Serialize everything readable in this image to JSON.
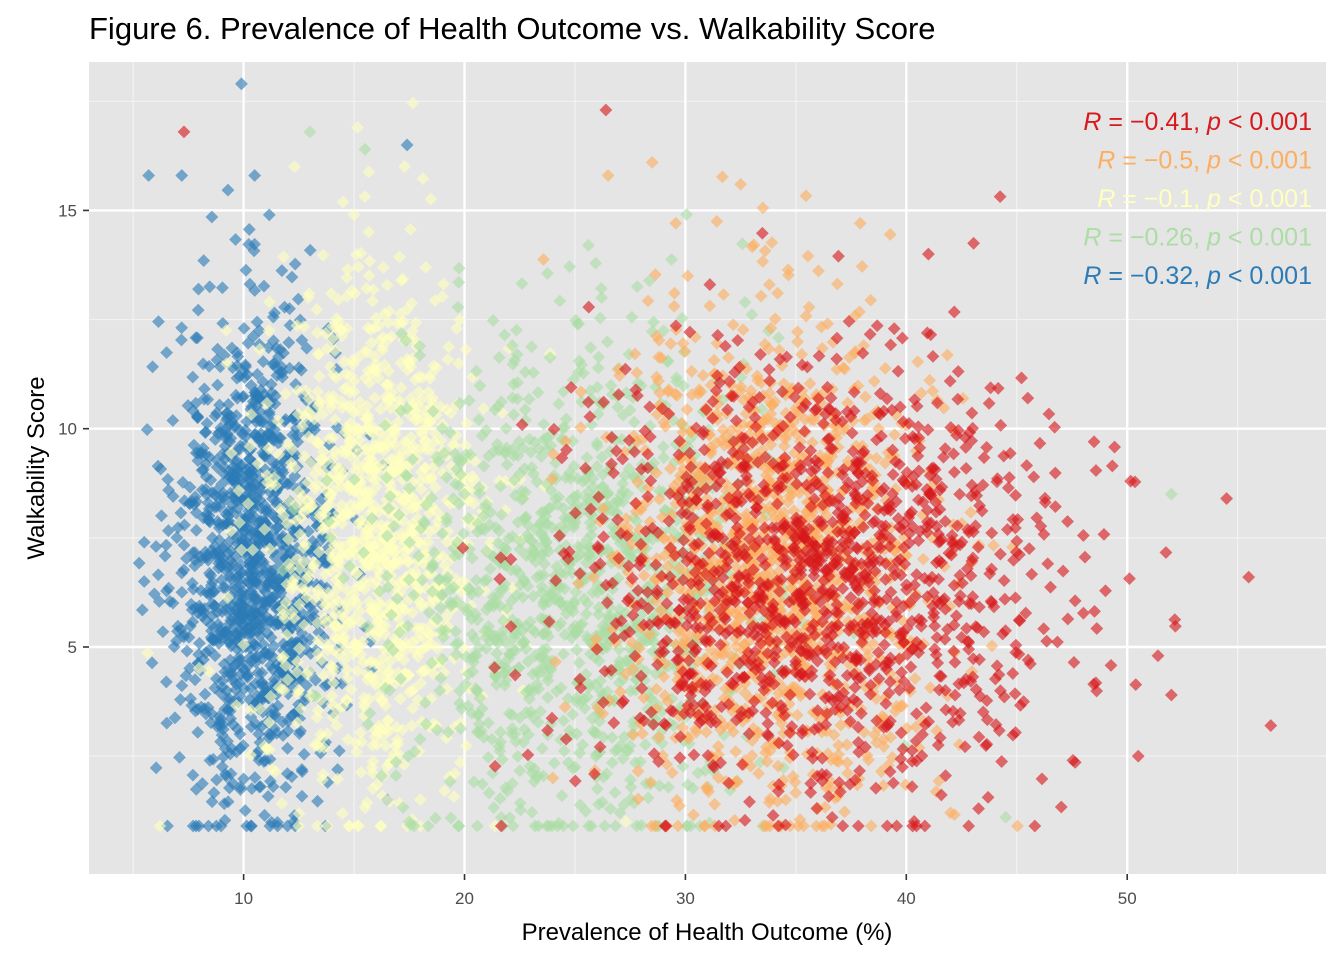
{
  "chart_data": {
    "type": "scatter",
    "title": "Figure 6. Prevalence of Health Outcome vs. Walkability Score",
    "xlabel": "Prevalence of Health Outcome (%)",
    "ylabel": "Walkability Score",
    "xlim": [
      3,
      59
    ],
    "ylim": [
      -0.2,
      18.4
    ],
    "x_ticks": [
      10,
      20,
      30,
      40,
      50
    ],
    "y_ticks": [
      5,
      10,
      15
    ],
    "grid": true,
    "marker": "diamond",
    "series": [
      {
        "color": "#d7191c",
        "annotation": {
          "r": "−0.41",
          "p": "0.001"
        },
        "cluster": {
          "x_mean": 36,
          "x_sd": 5.5,
          "y_mean": 6.5,
          "y_sd": 2.5,
          "n": 1300
        },
        "values": [
          [
            7.3,
            16.8
          ],
          [
            26.4,
            17.3
          ],
          [
            56.5,
            3.2
          ],
          [
            52.0,
            3.9
          ],
          [
            50.5,
            2.5
          ],
          [
            54.5,
            8.4
          ],
          [
            55.5,
            6.6
          ],
          [
            48.5,
            9.7
          ],
          [
            45.5,
            10.7
          ],
          [
            41.0,
            14.0
          ]
        ]
      },
      {
        "color": "#fdae61",
        "annotation": {
          "r": "−0.5",
          "p": "0.001"
        },
        "cluster": {
          "x_mean": 34,
          "x_sd": 3.5,
          "y_mean": 7.0,
          "y_sd": 2.8,
          "n": 1300
        },
        "values": [
          [
            28.5,
            16.1
          ],
          [
            32.5,
            15.6
          ],
          [
            24.0,
            2.0
          ],
          [
            26.5,
            15.8
          ],
          [
            42.0,
            1.2
          ]
        ]
      },
      {
        "color": "#ffffbf",
        "annotation": {
          "r": "−0.1",
          "p": "0.001"
        },
        "cluster": {
          "x_mean": 16,
          "x_sd": 2.5,
          "y_mean": 7.5,
          "y_sd": 3.0,
          "n": 1100
        },
        "values": [
          [
            12.3,
            16.0
          ],
          [
            27.3,
            1.0
          ],
          [
            18.0,
            1.5
          ],
          [
            15.0,
            14.9
          ]
        ]
      },
      {
        "color": "#abdda4",
        "annotation": {
          "r": "−0.26",
          "p": "0.001"
        },
        "cluster": {
          "x_mean": 25,
          "x_sd": 4.0,
          "y_mean": 6.5,
          "y_sd": 2.8,
          "n": 1200
        },
        "values": [
          [
            13.0,
            16.8
          ],
          [
            15.5,
            16.4
          ],
          [
            44.5,
            1.1
          ],
          [
            17.5,
            1.0
          ],
          [
            52.0,
            8.5
          ]
        ]
      },
      {
        "color": "#2c7bb6",
        "annotation": {
          "r": "−0.32",
          "p": "0.001"
        },
        "cluster": {
          "x_mean": 10.5,
          "x_sd": 1.8,
          "y_mean": 7.0,
          "y_sd": 2.8,
          "n": 1200
        },
        "values": [
          [
            9.9,
            17.9
          ],
          [
            5.7,
            15.8
          ],
          [
            7.2,
            15.8
          ],
          [
            10.5,
            15.8
          ],
          [
            17.4,
            16.5
          ],
          [
            5.5,
            7.4
          ],
          [
            5.5,
            6.5
          ],
          [
            6.5,
            4.2
          ],
          [
            16.5,
            1.5
          ]
        ]
      }
    ]
  }
}
